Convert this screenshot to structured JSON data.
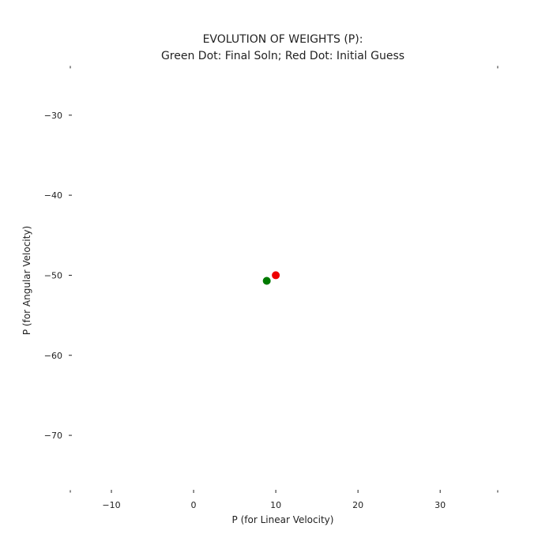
{
  "chart_data": {
    "type": "scatter",
    "title": "EVOLUTION OF WEIGHTS (P):",
    "subtitle": "Green Dot: Final Soln; Red Dot: Initial Guess",
    "xlabel": "P (for Linear Velocity)",
    "ylabel": "P (for Angular Velocity)",
    "xlim": [
      -15,
      37
    ],
    "ylim": [
      -77,
      -24
    ],
    "xticks": [
      -10,
      0,
      10,
      20,
      30
    ],
    "xtick_labels": [
      "−10",
      "0",
      "10",
      "20",
      "30"
    ],
    "yticks": [
      -30,
      -40,
      -50,
      -60,
      -70
    ],
    "ytick_labels": [
      "−30",
      "−40",
      "−50",
      "−60",
      "−70"
    ],
    "grid": false,
    "series": [
      {
        "color": "#007a00",
        "points": [
          {
            "x": 8.9,
            "y": -50.7
          }
        ]
      },
      {
        "color": "#ee0000",
        "points": [
          {
            "x": 10.0,
            "y": -50.0
          }
        ]
      }
    ]
  }
}
